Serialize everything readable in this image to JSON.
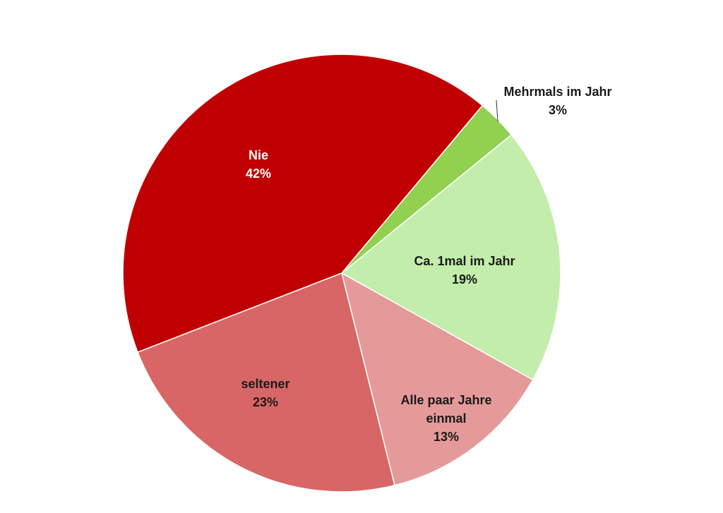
{
  "chart_data": {
    "type": "pie",
    "title": "",
    "start_angle_deg": 50,
    "direction": "clockwise",
    "legend": "none",
    "slices": [
      {
        "label": "Mehrmals im Jahr",
        "value": 3,
        "value_label": "3%",
        "color": "#92d050",
        "label_color": "#1a1a1a"
      },
      {
        "label": "Ca. 1mal im Jahr",
        "value": 19,
        "value_label": "19%",
        "color": "#c3edaa",
        "label_color": "#1a1a1a"
      },
      {
        "label": "Alle paar Jahre einmal",
        "value": 13,
        "value_label": "13%",
        "color": "#e59a9a",
        "label_color": "#1a1a1a"
      },
      {
        "label": "seltener",
        "value": 23,
        "value_label": "23%",
        "color": "#d96666",
        "label_color": "#1a1a1a"
      },
      {
        "label": "Nie",
        "value": 42,
        "value_label": "42%",
        "color": "#c00000",
        "label_color": "#ffffff"
      }
    ]
  }
}
